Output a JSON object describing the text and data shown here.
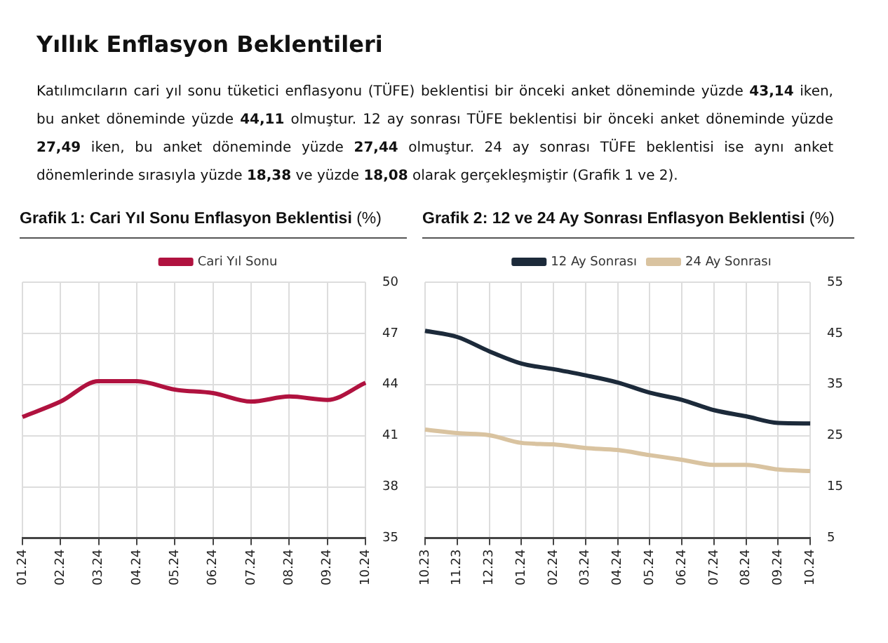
{
  "chart_data": [
    {
      "type": "line",
      "title": "Grafik 1: Cari Yıl Sonu Enflasyon Beklentisi (%)",
      "annotations": [
        "Yıllık Enflasyon Beklentileri",
        "Katılımcıların cari yıl sonu tüketici enflasyonu (TÜFE) beklentisi bir önceki anket döneminde yüzde 43,14 iken, bu anket döneminde yüzde 44,11 olmuştur. 12 ay sonrası TÜFE beklentisi bir önceki anket döneminde yüzde 27,49 iken, bu anket döneminde yüzde 27,44 olmuştur. 24 ay sonrası TÜFE beklentisi ise aynı anket dönemlerinde sırasıyla yüzde 18,38 ve yüzde 18,08 olarak gerçekleşmiştir (Grafik 1 ve 2)."
      ],
      "categories": [
        "01.24",
        "02.24",
        "03.24",
        "04.24",
        "05.24",
        "06.24",
        "07.24",
        "08.24",
        "09.24",
        "10.24"
      ],
      "series": [
        {
          "name": "Cari Yıl Sonu",
          "color": "#b0123f",
          "values": [
            42.1,
            43.0,
            44.2,
            44.2,
            43.7,
            43.5,
            43.0,
            43.3,
            43.1,
            44.1
          ]
        }
      ],
      "ylim": [
        35,
        50
      ],
      "yticks": [
        35,
        38,
        41,
        44,
        47,
        50
      ],
      "grid": true,
      "legend": "top",
      "marker": "none",
      "line_style": "solid"
    },
    {
      "type": "line",
      "title": "Grafik 2: 12 ve 24 Ay Sonrası Enflasyon Beklentisi (%)",
      "categories": [
        "10.23",
        "11.23",
        "12.23",
        "01.24",
        "02.24",
        "03.24",
        "04.24",
        "05.24",
        "06.24",
        "07.24",
        "08.24",
        "09.24",
        "10.24"
      ],
      "series": [
        {
          "name": "12 Ay Sonrası",
          "color": "#1c2a3a",
          "values": [
            45.5,
            44.3,
            41.5,
            39.1,
            38.0,
            36.8,
            35.4,
            33.4,
            32.0,
            30.0,
            28.8,
            27.5,
            27.4
          ]
        },
        {
          "name": "24 Ay Sonrası",
          "color": "#d9c3a0",
          "values": [
            26.2,
            25.5,
            25.1,
            23.6,
            23.3,
            22.6,
            22.2,
            21.2,
            20.3,
            19.3,
            19.3,
            18.4,
            18.1
          ]
        }
      ],
      "ylim": [
        5,
        55
      ],
      "yticks": [
        5,
        15,
        25,
        35,
        45,
        55
      ],
      "grid": true,
      "legend": "top",
      "marker": "none",
      "line_style": "solid"
    }
  ]
}
